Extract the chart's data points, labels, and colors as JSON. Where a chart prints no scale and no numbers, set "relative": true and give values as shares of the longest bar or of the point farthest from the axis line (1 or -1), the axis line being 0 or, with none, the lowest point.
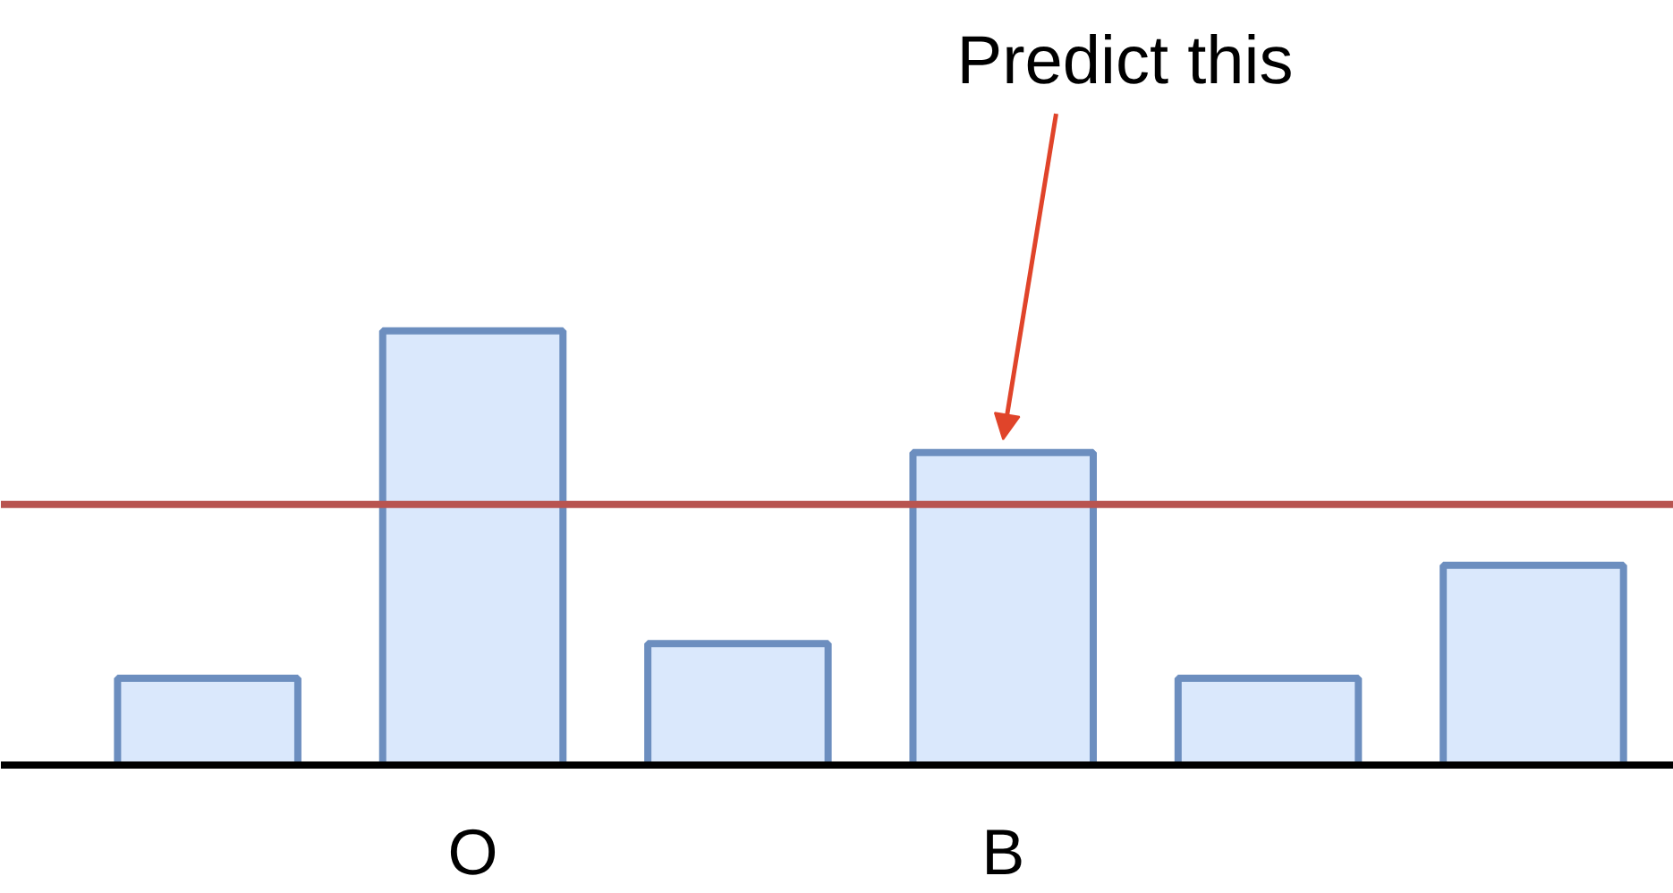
{
  "chart_data": {
    "type": "bar",
    "relative": true,
    "categories": [
      null,
      "O",
      null,
      "B",
      null,
      null
    ],
    "values": [
      0.2,
      1,
      0.28,
      0.72,
      0.2,
      0.46
    ],
    "color": "#dae8fc",
    "ref_lines": [
      {
        "axis": "y",
        "value": 0.6,
        "color": "#b85450"
      }
    ],
    "annotations": [
      {
        "text": "Predict this",
        "x": "B",
        "y": 0.72
      }
    ],
    "grid": false
  }
}
